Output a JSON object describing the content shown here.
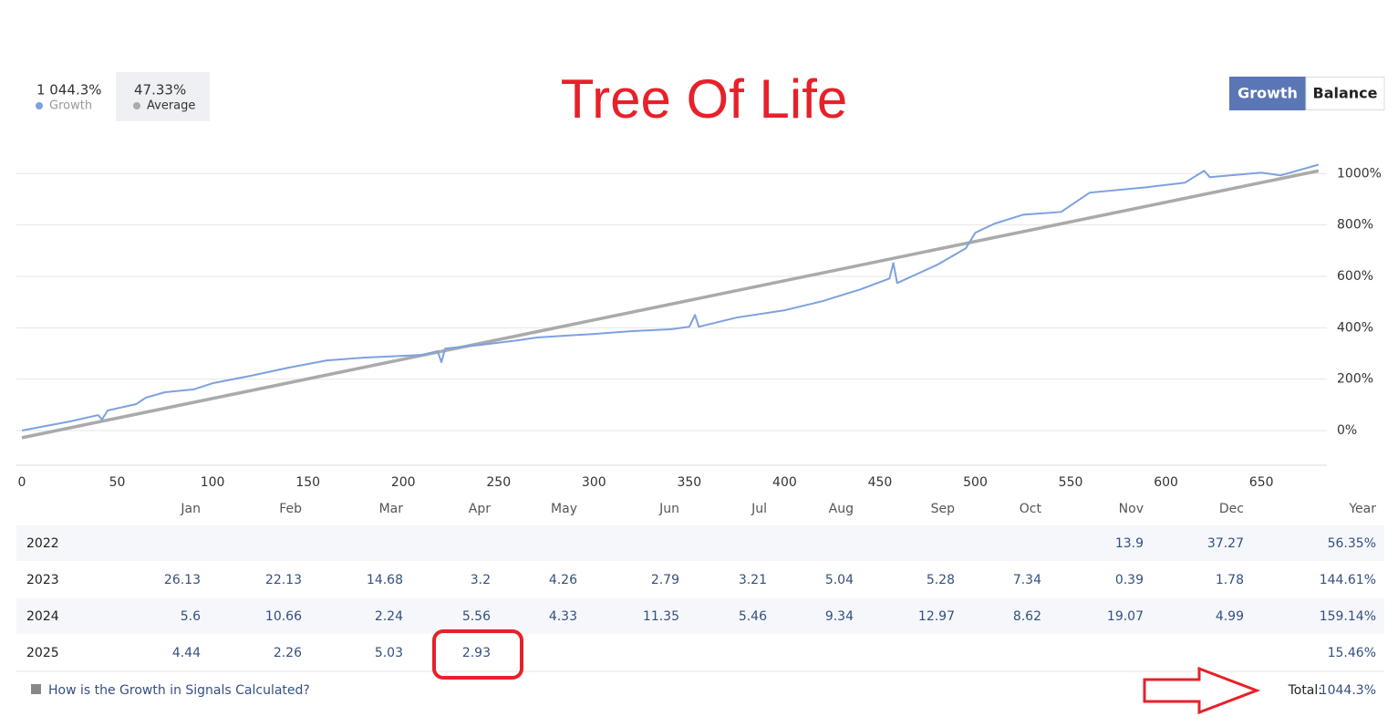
{
  "header": {
    "stats": [
      {
        "value": "1 044.3%",
        "label": "Growth"
      },
      {
        "value": "47.33%",
        "label": "Average"
      }
    ],
    "toggle": [
      "Growth",
      "Balance"
    ]
  },
  "chart_data": {
    "type": "line",
    "title": "Tree Of Life",
    "xlim": [
      0,
      685
    ],
    "ylim": [
      -135,
      1090
    ],
    "xticks": [
      0,
      50,
      100,
      150,
      200,
      250,
      300,
      350,
      400,
      450,
      500,
      550,
      600,
      650
    ],
    "yticks": [
      {
        "value": 0,
        "label": "0%"
      },
      {
        "value": 200,
        "label": "200%"
      },
      {
        "value": 400,
        "label": "400%"
      },
      {
        "value": 600,
        "label": "600%"
      },
      {
        "value": 800,
        "label": "800%"
      },
      {
        "value": 1000,
        "label": "1000%"
      }
    ],
    "grid": true,
    "series": [
      {
        "name": "Growth",
        "color": "#7da1e0",
        "x": [
          0,
          10,
          25,
          40,
          42,
          45,
          60,
          65,
          75,
          90,
          100,
          120,
          140,
          160,
          180,
          210,
          218,
          220,
          222,
          240,
          260,
          270,
          300,
          320,
          340,
          350,
          353,
          355,
          375,
          400,
          420,
          440,
          455,
          457,
          459,
          480,
          495,
          500,
          510,
          525,
          545,
          555,
          560,
          590,
          610,
          620,
          623,
          650,
          660,
          680
        ],
        "values": [
          0,
          14,
          35,
          60,
          43,
          78,
          103,
          128,
          149,
          160,
          184,
          213,
          245,
          273,
          284,
          294,
          309,
          266,
          319,
          333,
          351,
          362,
          376,
          387,
          394,
          404,
          450,
          404,
          440,
          468,
          504,
          550,
          592,
          652,
          574,
          645,
          709,
          770,
          805,
          840,
          851,
          901,
          926,
          947,
          965,
          1011,
          986,
          1004,
          993,
          1035
        ]
      },
      {
        "name": "Average",
        "color": "#aaaaaa",
        "x": [
          0,
          680
        ],
        "values": [
          -28,
          1011
        ]
      }
    ]
  },
  "table": {
    "columns": [
      "Jan",
      "Feb",
      "Mar",
      "Apr",
      "May",
      "Jun",
      "Jul",
      "Aug",
      "Sep",
      "Oct",
      "Nov",
      "Dec",
      "Year"
    ],
    "rows": [
      {
        "year": "2022",
        "cells": [
          null,
          null,
          null,
          null,
          null,
          null,
          null,
          null,
          null,
          null,
          "13.9",
          "37.27",
          "56.35%"
        ]
      },
      {
        "year": "2023",
        "cells": [
          "26.13",
          "22.13",
          "14.68",
          "3.2",
          "4.26",
          "2.79",
          "3.21",
          "5.04",
          "5.28",
          "7.34",
          "0.39",
          "1.78",
          "144.61%"
        ]
      },
      {
        "year": "2024",
        "cells": [
          "5.6",
          "10.66",
          "2.24",
          "5.56",
          "4.33",
          "11.35",
          "5.46",
          "9.34",
          "12.97",
          "8.62",
          "19.07",
          "4.99",
          "159.14%"
        ]
      },
      {
        "year": "2025",
        "cells": [
          "4.44",
          "2.26",
          "5.03",
          "2.93",
          null,
          null,
          null,
          null,
          null,
          null,
          null,
          null,
          "15.46%"
        ]
      }
    ]
  },
  "footer": {
    "link": "How is the Growth in Signals Calculated?",
    "total_label": "Total:",
    "total_value": "1044.3%"
  }
}
